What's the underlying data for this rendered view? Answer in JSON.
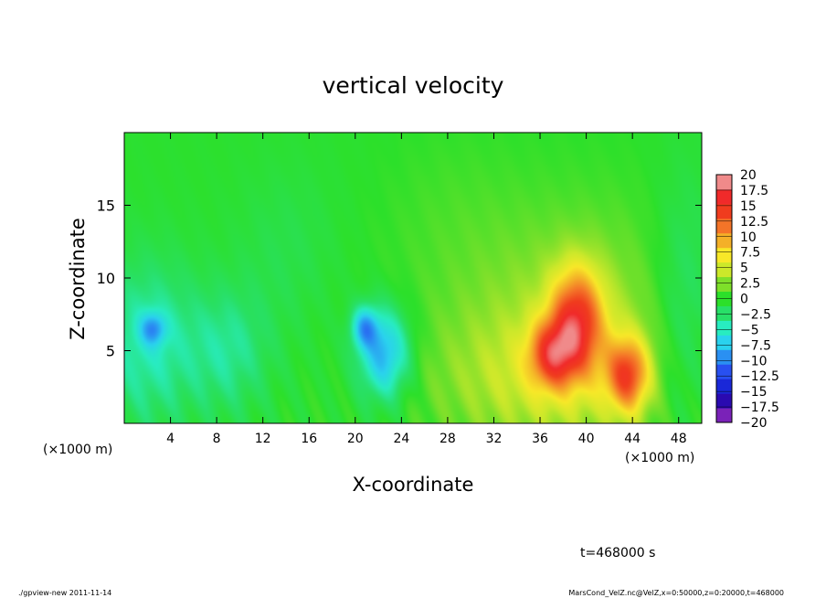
{
  "chart_data": {
    "type": "heatmap",
    "title": "vertical velocity",
    "xlabel": "X-coordinate",
    "ylabel": "Z-coordinate",
    "x_unit_left": "(×1000 m)",
    "x_unit_right": "(×1000 m)",
    "xlim": [
      0,
      50
    ],
    "ylim": [
      0,
      20
    ],
    "x_ticks": [
      4,
      8,
      12,
      16,
      20,
      24,
      28,
      32,
      36,
      40,
      44,
      48
    ],
    "y_ticks": [
      5,
      10,
      15
    ],
    "colorbar_levels": [
      "20",
      "17.5",
      "15",
      "12.5",
      "10",
      "7.5",
      "5",
      "2.5",
      "0",
      "−2.5",
      "−5",
      "−7.5",
      "−10",
      "−12.5",
      "−15",
      "−17.5",
      "−20"
    ],
    "colorbar_range": [
      -20,
      20
    ],
    "features": [
      {
        "x": 39.2,
        "z": 7.0,
        "sx": 1.6,
        "sz": 2.6,
        "value": 13
      },
      {
        "x": 43.6,
        "z": 3.3,
        "sx": 1.3,
        "sz": 1.8,
        "value": 12
      },
      {
        "x": 37.0,
        "z": 4.7,
        "sx": 1.4,
        "sz": 1.6,
        "value": 10
      },
      {
        "x": 38.5,
        "z": 6.0,
        "sx": 8.0,
        "sz": 6.0,
        "value": 4
      },
      {
        "x": 35.0,
        "z": 3.0,
        "sx": 6.0,
        "sz": 3.0,
        "value": 2.5
      },
      {
        "x": 22.5,
        "z": 4.8,
        "sx": 1.6,
        "sz": 2.2,
        "value": -9
      },
      {
        "x": 20.8,
        "z": 6.6,
        "sx": 0.8,
        "sz": 1.0,
        "value": -7
      },
      {
        "x": 2.0,
        "z": 5.5,
        "sx": 3.0,
        "sz": 4.0,
        "value": -4.5
      },
      {
        "x": 9.0,
        "z": 5.0,
        "sx": 2.5,
        "sz": 3.0,
        "value": -3.5
      },
      {
        "x": 2.5,
        "z": 6.5,
        "sx": 0.8,
        "sz": 0.8,
        "value": -6
      },
      {
        "x": 14.0,
        "z": 12.0,
        "sx": 3.0,
        "sz": 4.0,
        "value": -1.2
      },
      {
        "x": 28.0,
        "z": 15.0,
        "sx": 4.0,
        "sz": 4.0,
        "value": 0.6
      },
      {
        "x": 48.5,
        "z": 8.0,
        "sx": 2.0,
        "sz": 6.0,
        "value": -3.2
      }
    ]
  },
  "annotations": {
    "time": "t=468000 s",
    "footer_left": "./gpview-new  2011-11-14",
    "footer_right": "MarsCond_VelZ.nc@VelZ,x=0:50000,z=0:20000,t=468000"
  },
  "colormap": [
    "#7a22b8",
    "#2a0ab0",
    "#1a28d8",
    "#2850f0",
    "#2a90f2",
    "#2ad2ee",
    "#28ecc0",
    "#28e068",
    "#2ce02a",
    "#7ee02a",
    "#cce82a",
    "#f8e828",
    "#f4b028",
    "#f47428",
    "#f03c1e",
    "#f02a2a",
    "#f08a8a"
  ]
}
